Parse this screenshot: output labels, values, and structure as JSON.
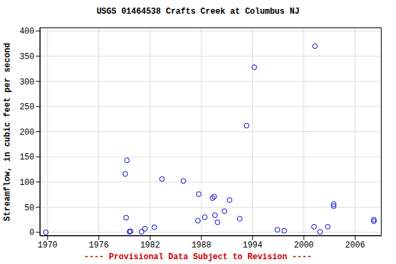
{
  "chart_data": {
    "type": "scatter",
    "title": "USGS 01464538 Crafts Creek at Columbus NJ",
    "xlabel": "---- Provisional Data Subject to Revision ----",
    "ylabel": "Streamflow, in cubic feet per second",
    "x": [
      1969.8,
      1979.1,
      1979.3,
      1979.2,
      1979.6,
      1979.7,
      1981.0,
      1981.4,
      1982.5,
      1983.4,
      1985.9,
      1987.7,
      1987.6,
      1988.4,
      1989.3,
      1989.5,
      1989.6,
      1989.9,
      1990.7,
      1991.3,
      1992.5,
      1993.3,
      1994.2,
      1996.9,
      1997.7,
      2001.2,
      2001.3,
      2001.9,
      2002.8,
      2003.5,
      2003.5,
      2008.2,
      2008.2
    ],
    "values": [
      0,
      116,
      143,
      29,
      1,
      2,
      1,
      7,
      10,
      106,
      102,
      76,
      23,
      30,
      68,
      71,
      34,
      20,
      42,
      64,
      27,
      212,
      328,
      5,
      3,
      11,
      370,
      1,
      11,
      56,
      52,
      25,
      22
    ],
    "color": "#0000cc",
    "marker": "open_circle",
    "xlim": [
      1969.1,
      2009.1
    ],
    "xticks": [
      1970,
      1976,
      1982,
      1988,
      1994,
      2000,
      2006
    ],
    "ylim": [
      -7,
      407
    ],
    "yticks": [
      0,
      50,
      100,
      150,
      200,
      250,
      300,
      350,
      400
    ],
    "grid": true
  }
}
